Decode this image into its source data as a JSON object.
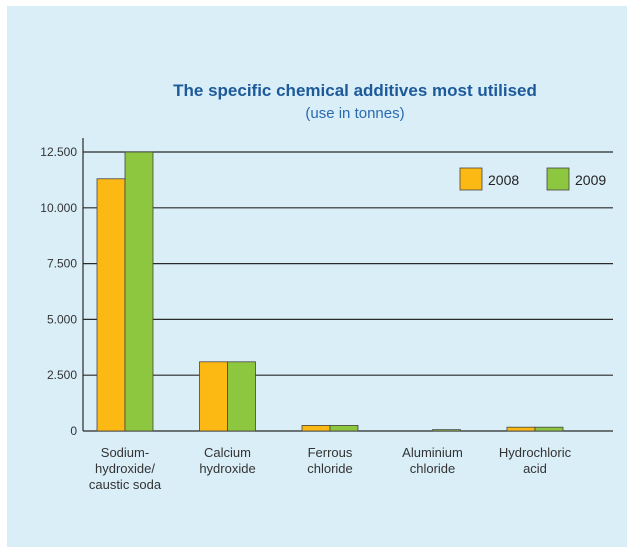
{
  "colors": {
    "background": "#daeef8",
    "gridline": "#2a2a2a",
    "series_2008": "#fdb913",
    "series_2009": "#8dc63f",
    "bar_outline": "#444444"
  },
  "chart_data": {
    "type": "bar",
    "title": "The specific chemical additives most utilised",
    "subtitle": "(use in tonnes)",
    "categories": [
      [
        "Sodium-",
        "hydroxide/",
        "caustic soda"
      ],
      [
        "Calcium",
        "hydroxide"
      ],
      [
        "Ferrous",
        "chloride"
      ],
      [
        "Aluminium",
        "chloride"
      ],
      [
        "Hydrochloric",
        "acid"
      ]
    ],
    "series": [
      {
        "name": "2008",
        "color": "#fdb913",
        "values": [
          11300,
          3100,
          250,
          0,
          170
        ]
      },
      {
        "name": "2009",
        "color": "#8dc63f",
        "values": [
          12500,
          3100,
          250,
          60,
          170
        ]
      }
    ],
    "yticks": [
      0,
      2500,
      5000,
      7500,
      10000,
      12500
    ],
    "ytick_labels": [
      "0",
      "2.500",
      "5.000",
      "7.500",
      "10.000",
      "12.500"
    ],
    "ylim": [
      0,
      12500
    ],
    "grid": true,
    "legend_position": "top-right",
    "xlabel": "",
    "ylabel": ""
  }
}
